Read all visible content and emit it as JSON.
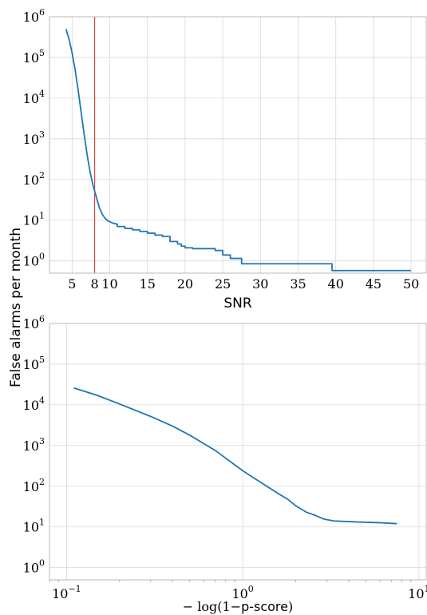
{
  "figure": {
    "shared_ylabel": "False alarms per month"
  },
  "chart_data": [
    {
      "type": "line",
      "panel": "top",
      "xlabel": "SNR",
      "ylabel": "False alarms per month",
      "xlim": [
        2,
        52
      ],
      "ylim": [
        0.5,
        1000000
      ],
      "yscale": "log",
      "grid": true,
      "xticks": [
        5,
        8,
        10,
        15,
        20,
        25,
        30,
        35,
        40,
        45,
        50
      ],
      "xtick_labels": [
        "5",
        "8",
        "10",
        "15",
        "20",
        "25",
        "30",
        "35",
        "40",
        "45",
        "50"
      ],
      "yticks": [
        1,
        10,
        100,
        1000,
        10000,
        100000,
        1000000
      ],
      "ytick_labels": [
        {
          "base": "10",
          "exp": "0"
        },
        {
          "base": "10",
          "exp": "1"
        },
        {
          "base": "10",
          "exp": "2"
        },
        {
          "base": "10",
          "exp": "3"
        },
        {
          "base": "10",
          "exp": "4"
        },
        {
          "base": "10",
          "exp": "5"
        },
        {
          "base": "10",
          "exp": "6"
        }
      ],
      "threshold_line": {
        "x": 8,
        "color": "#d62728"
      },
      "series": [
        {
          "color": "#1f77b4",
          "x": [
            4.2,
            4.6,
            5.0,
            5.4,
            5.8,
            6.2,
            6.6,
            7.0,
            7.4,
            7.8,
            8.2,
            8.6,
            9.0,
            9.4,
            9.8,
            10.4,
            11.0,
            11.0,
            12.0,
            12.0,
            13.0,
            13.0,
            14.0,
            14.0,
            15.0,
            15.0,
            16.0,
            16.0,
            17.0,
            17.0,
            18.0,
            18.0,
            19.0,
            19.0,
            19.5,
            19.5,
            20.0,
            20.0,
            21.0,
            21.0,
            24.0,
            24.0,
            25.0,
            25.0,
            26.0,
            26.0,
            27.5,
            27.5,
            39.5,
            39.5,
            50.0
          ],
          "y": [
            500000,
            280000,
            130000,
            50000,
            16000,
            4500,
            1300,
            400,
            150,
            70,
            38,
            21,
            14,
            11,
            9.5,
            8.5,
            8.0,
            7.0,
            7.0,
            6.3,
            6.3,
            5.8,
            5.8,
            5.3,
            5.3,
            4.8,
            4.8,
            4.3,
            4.3,
            4.0,
            4.0,
            3.0,
            3.0,
            2.6,
            2.6,
            2.3,
            2.3,
            2.1,
            2.1,
            2.0,
            2.0,
            1.8,
            1.8,
            1.4,
            1.4,
            1.15,
            1.15,
            0.85,
            0.85,
            0.58,
            0.58
          ]
        }
      ]
    },
    {
      "type": "line",
      "panel": "bottom",
      "xlabel": "−log(1−p-score)",
      "xlabel_parts": {
        "pre": "− log(1−",
        "mid": "p-score",
        "post": ")"
      },
      "ylabel": "False alarms per month",
      "xscale": "log",
      "yscale": "log",
      "xlim": [
        0.08,
        11
      ],
      "ylim": [
        0.5,
        1000000
      ],
      "grid": true,
      "xticks": [
        0.1,
        1,
        10
      ],
      "xtick_labels": [
        {
          "base": "10",
          "exp": "−1"
        },
        {
          "base": "10",
          "exp": "0"
        },
        {
          "base": "10",
          "exp": "1"
        }
      ],
      "yticks": [
        1,
        10,
        100,
        1000,
        10000,
        100000,
        1000000
      ],
      "ytick_labels": [
        {
          "base": "10",
          "exp": "0"
        },
        {
          "base": "10",
          "exp": "1"
        },
        {
          "base": "10",
          "exp": "2"
        },
        {
          "base": "10",
          "exp": "3"
        },
        {
          "base": "10",
          "exp": "4"
        },
        {
          "base": "10",
          "exp": "5"
        },
        {
          "base": "10",
          "exp": "6"
        }
      ],
      "series": [
        {
          "color": "#1f77b4",
          "x": [
            0.11,
            0.15,
            0.2,
            0.3,
            0.4,
            0.5,
            0.7,
            1.0,
            1.3,
            1.6,
            1.8,
            2.0,
            2.3,
            2.6,
            2.9,
            3.3,
            4.0,
            5.0,
            6.0,
            7.5
          ],
          "y": [
            26000,
            17000,
            10500,
            5200,
            3000,
            1800,
            750,
            240,
            115,
            65,
            48,
            33,
            23,
            19,
            15.5,
            14,
            13.5,
            13,
            12.7,
            12
          ]
        }
      ]
    }
  ]
}
